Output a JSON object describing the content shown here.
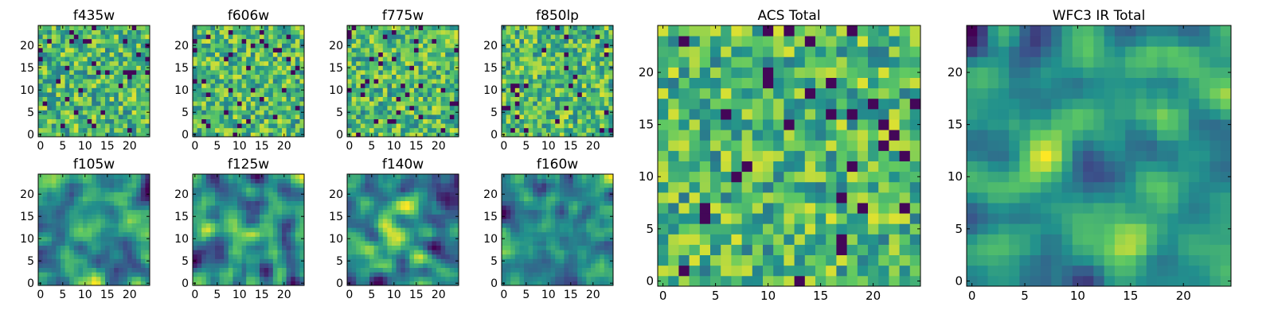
{
  "colormap": [
    "#440154",
    "#3b528b",
    "#21908d",
    "#5dc863",
    "#fde725"
  ],
  "chart_data": [
    {
      "type": "heatmap",
      "title": "f435w",
      "x_ticks": [
        "0",
        "5",
        "10",
        "15",
        "20"
      ],
      "y_ticks": [
        "0",
        "5",
        "10",
        "15",
        "20"
      ],
      "xlim": [
        0,
        24
      ],
      "ylim": [
        0,
        24
      ],
      "grid": false,
      "style": "speckled",
      "seed": 11
    },
    {
      "type": "heatmap",
      "title": "f606w",
      "x_ticks": [
        "0",
        "5",
        "10",
        "15",
        "20"
      ],
      "y_ticks": [
        "0",
        "5",
        "10",
        "15",
        "20"
      ],
      "xlim": [
        0,
        24
      ],
      "ylim": [
        0,
        24
      ],
      "grid": false,
      "style": "speckled",
      "seed": 23
    },
    {
      "type": "heatmap",
      "title": "f775w",
      "x_ticks": [
        "0",
        "5",
        "10",
        "15",
        "20"
      ],
      "y_ticks": [
        "0",
        "5",
        "10",
        "15",
        "20"
      ],
      "xlim": [
        0,
        24
      ],
      "ylim": [
        0,
        24
      ],
      "grid": false,
      "style": "speckled",
      "seed": 37
    },
    {
      "type": "heatmap",
      "title": "f850lp",
      "x_ticks": [
        "0",
        "5",
        "10",
        "15",
        "20"
      ],
      "y_ticks": [
        "0",
        "5",
        "10",
        "15",
        "20"
      ],
      "xlim": [
        0,
        24
      ],
      "ylim": [
        0,
        24
      ],
      "grid": false,
      "style": "speckled",
      "seed": 41
    },
    {
      "type": "heatmap",
      "title": "f105w",
      "x_ticks": [
        "0",
        "5",
        "10",
        "15",
        "20"
      ],
      "y_ticks": [
        "0",
        "5",
        "10",
        "15",
        "20"
      ],
      "xlim": [
        0,
        24
      ],
      "ylim": [
        0,
        24
      ],
      "grid": false,
      "style": "smooth",
      "seed": 53
    },
    {
      "type": "heatmap",
      "title": "f125w",
      "x_ticks": [
        "0",
        "5",
        "10",
        "15",
        "20"
      ],
      "y_ticks": [
        "0",
        "5",
        "10",
        "15",
        "20"
      ],
      "xlim": [
        0,
        24
      ],
      "ylim": [
        0,
        24
      ],
      "grid": false,
      "style": "smooth",
      "seed": 67
    },
    {
      "type": "heatmap",
      "title": "f140w",
      "x_ticks": [
        "0",
        "5",
        "10",
        "15",
        "20"
      ],
      "y_ticks": [
        "0",
        "5",
        "10",
        "15",
        "20"
      ],
      "xlim": [
        0,
        24
      ],
      "ylim": [
        0,
        24
      ],
      "grid": false,
      "style": "smooth",
      "seed": 71
    },
    {
      "type": "heatmap",
      "title": "f160w",
      "x_ticks": [
        "0",
        "5",
        "10",
        "15",
        "20"
      ],
      "y_ticks": [
        "0",
        "5",
        "10",
        "15",
        "20"
      ],
      "xlim": [
        0,
        24
      ],
      "ylim": [
        0,
        24
      ],
      "grid": false,
      "style": "smooth",
      "seed": 89
    },
    {
      "type": "heatmap",
      "title": "ACS Total",
      "x_ticks": [
        "0",
        "5",
        "10",
        "15",
        "20"
      ],
      "y_ticks": [
        "0",
        "5",
        "10",
        "15",
        "20"
      ],
      "xlim": [
        0,
        24
      ],
      "ylim": [
        0,
        24
      ],
      "grid": false,
      "style": "speckled",
      "seed": 97
    },
    {
      "type": "heatmap",
      "title": "WFC3 IR Total",
      "x_ticks": [
        "0",
        "5",
        "10",
        "15",
        "20"
      ],
      "y_ticks": [
        "0",
        "5",
        "10",
        "15",
        "20"
      ],
      "xlim": [
        0,
        24
      ],
      "ylim": [
        0,
        24
      ],
      "grid": false,
      "style": "smooth",
      "seed": 103
    }
  ]
}
